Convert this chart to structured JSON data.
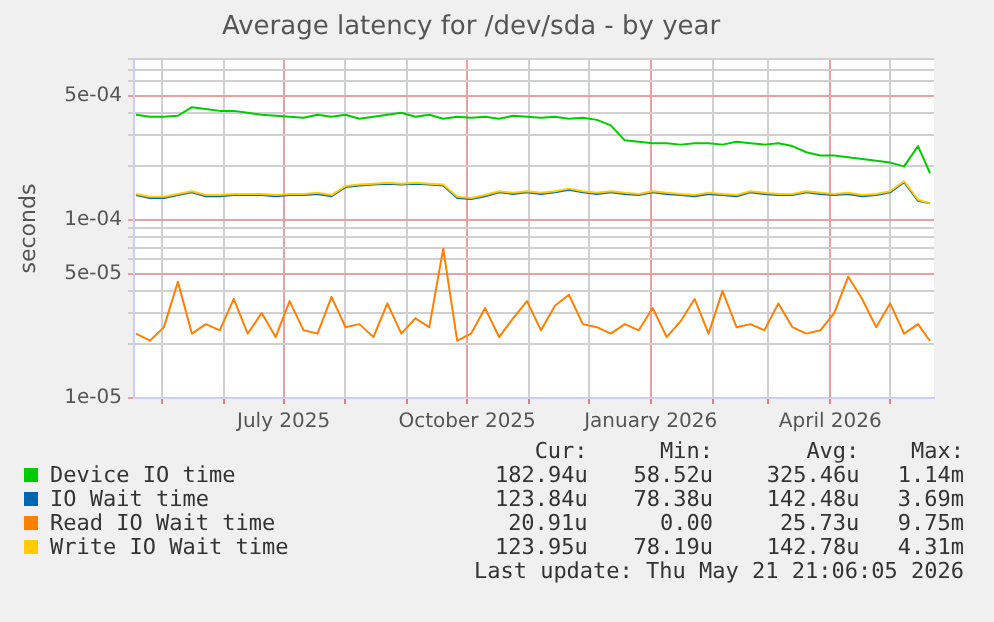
{
  "chart_data": {
    "type": "line",
    "title": "Average latency for /dev/sda - by year",
    "ylabel": "seconds",
    "x": [
      "2025-04-18",
      "2025-04-25",
      "2025-05-02",
      "2025-05-09",
      "2025-05-16",
      "2025-05-23",
      "2025-05-30",
      "2025-06-06",
      "2025-06-13",
      "2025-06-20",
      "2025-06-27",
      "2025-07-04",
      "2025-07-11",
      "2025-07-18",
      "2025-07-25",
      "2025-08-01",
      "2025-08-08",
      "2025-08-15",
      "2025-08-22",
      "2025-08-29",
      "2025-09-05",
      "2025-09-12",
      "2025-09-19",
      "2025-09-26",
      "2025-10-03",
      "2025-10-10",
      "2025-10-17",
      "2025-10-24",
      "2025-10-31",
      "2025-11-07",
      "2025-11-14",
      "2025-11-21",
      "2025-11-28",
      "2025-12-05",
      "2025-12-12",
      "2025-12-19",
      "2025-12-26",
      "2026-01-02",
      "2026-01-09",
      "2026-01-16",
      "2026-01-23",
      "2026-01-30",
      "2026-02-06",
      "2026-02-13",
      "2026-02-20",
      "2026-02-27",
      "2026-03-06",
      "2026-03-13",
      "2026-03-20",
      "2026-03-27",
      "2026-04-03",
      "2026-04-10",
      "2026-04-17",
      "2026-04-24",
      "2026-05-01",
      "2026-05-08",
      "2026-05-15",
      "2026-05-21"
    ],
    "series": [
      {
        "name": "Device IO time",
        "color": "#00cc00",
        "values": [
          0.00039,
          0.00038,
          0.00038,
          0.000385,
          0.00043,
          0.00042,
          0.00041,
          0.00041,
          0.0004,
          0.00039,
          0.000385,
          0.00038,
          0.000375,
          0.00039,
          0.00038,
          0.00039,
          0.00037,
          0.00038,
          0.00039,
          0.0004,
          0.00038,
          0.00039,
          0.00037,
          0.00038,
          0.000375,
          0.00038,
          0.00037,
          0.000385,
          0.00038,
          0.000375,
          0.00038,
          0.00037,
          0.000375,
          0.000365,
          0.00034,
          0.00028,
          0.000275,
          0.00027,
          0.00027,
          0.000265,
          0.00027,
          0.00027,
          0.000265,
          0.000275,
          0.00027,
          0.000265,
          0.00027,
          0.00026,
          0.00024,
          0.00023,
          0.00023,
          0.000225,
          0.00022,
          0.000215,
          0.00021,
          0.0002,
          0.00026,
          0.000183
        ]
      },
      {
        "name": "IO Wait time",
        "color": "#0066b3",
        "values": [
          0.000138,
          0.000133,
          0.000133,
          0.000138,
          0.000143,
          0.000136,
          0.000136,
          0.000138,
          0.000138,
          0.000138,
          0.000136,
          0.000138,
          0.000138,
          0.00014,
          0.000136,
          0.000153,
          0.000156,
          0.000158,
          0.00016,
          0.000158,
          0.00016,
          0.000158,
          0.000156,
          0.000133,
          0.000131,
          0.000136,
          0.000143,
          0.00014,
          0.000143,
          0.00014,
          0.000143,
          0.000148,
          0.000143,
          0.00014,
          0.000143,
          0.00014,
          0.000138,
          0.000143,
          0.00014,
          0.000138,
          0.000136,
          0.00014,
          0.000138,
          0.000136,
          0.000143,
          0.00014,
          0.000138,
          0.000138,
          0.000143,
          0.00014,
          0.000138,
          0.00014,
          0.000136,
          0.000138,
          0.000143,
          0.000163,
          0.000128,
          0.000124
        ]
      },
      {
        "name": "Read IO Wait time",
        "color": "#ff8000",
        "values": [
          2.3e-05,
          2.1e-05,
          2.5e-05,
          4.5e-05,
          2.3e-05,
          2.6e-05,
          2.4e-05,
          3.6e-05,
          2.3e-05,
          3e-05,
          2.2e-05,
          3.5e-05,
          2.4e-05,
          2.3e-05,
          3.7e-05,
          2.5e-05,
          2.6e-05,
          2.2e-05,
          3.4e-05,
          2.3e-05,
          2.8e-05,
          2.5e-05,
          6.9e-05,
          2.1e-05,
          2.3e-05,
          3.2e-05,
          2.2e-05,
          2.8e-05,
          3.5e-05,
          2.4e-05,
          3.3e-05,
          3.8e-05,
          2.6e-05,
          2.5e-05,
          2.3e-05,
          2.6e-05,
          2.4e-05,
          3.2e-05,
          2.2e-05,
          2.7e-05,
          3.6e-05,
          2.3e-05,
          4e-05,
          2.5e-05,
          2.6e-05,
          2.4e-05,
          3.4e-05,
          2.5e-05,
          2.3e-05,
          2.4e-05,
          3e-05,
          4.8e-05,
          3.6e-05,
          2.5e-05,
          3.4e-05,
          2.3e-05,
          2.6e-05,
          2.09e-05
        ]
      },
      {
        "name": "Write IO Wait time",
        "color": "#ffcc00",
        "values": [
          0.00014,
          0.000135,
          0.000135,
          0.00014,
          0.000145,
          0.000138,
          0.000138,
          0.00014,
          0.00014,
          0.00014,
          0.000138,
          0.00014,
          0.00014,
          0.000142,
          0.000138,
          0.000155,
          0.000158,
          0.00016,
          0.000162,
          0.00016,
          0.000162,
          0.00016,
          0.000158,
          0.000135,
          0.000133,
          0.000138,
          0.000145,
          0.000142,
          0.000145,
          0.000142,
          0.000145,
          0.00015,
          0.000145,
          0.000142,
          0.000145,
          0.000142,
          0.00014,
          0.000145,
          0.000142,
          0.00014,
          0.000138,
          0.000142,
          0.00014,
          0.000138,
          0.000145,
          0.000142,
          0.00014,
          0.00014,
          0.000145,
          0.000142,
          0.00014,
          0.000142,
          0.000138,
          0.00014,
          0.000145,
          0.000165,
          0.00013,
          0.000124
        ]
      }
    ],
    "xlim": [
      "2025-04-17",
      "2026-05-23"
    ],
    "xticks": [
      {
        "value": "2025-05-01",
        "label": null
      },
      {
        "value": "2025-06-01",
        "label": null
      },
      {
        "value": "2025-07-01",
        "label": "July 2025"
      },
      {
        "value": "2025-08-01",
        "label": null
      },
      {
        "value": "2025-09-01",
        "label": null
      },
      {
        "value": "2025-10-01",
        "label": "October 2025"
      },
      {
        "value": "2025-11-01",
        "label": null
      },
      {
        "value": "2025-12-01",
        "label": null
      },
      {
        "value": "2026-01-01",
        "label": "January 2026"
      },
      {
        "value": "2026-02-01",
        "label": null
      },
      {
        "value": "2026-03-01",
        "label": null
      },
      {
        "value": "2026-04-01",
        "label": "April 2026"
      },
      {
        "value": "2026-05-01",
        "label": null
      }
    ],
    "ylim": [
      1e-05,
      0.0008
    ],
    "yticks": [
      {
        "value": 1e-05,
        "label": "1e-05"
      },
      {
        "value": 2e-05,
        "label": null
      },
      {
        "value": 3e-05,
        "label": null
      },
      {
        "value": 4e-05,
        "label": null
      },
      {
        "value": 5e-05,
        "label": "5e-05"
      },
      {
        "value": 6e-05,
        "label": null
      },
      {
        "value": 7e-05,
        "label": null
      },
      {
        "value": 8e-05,
        "label": null
      },
      {
        "value": 9e-05,
        "label": null
      },
      {
        "value": 0.0001,
        "label": "1e-04"
      },
      {
        "value": 0.0002,
        "label": null
      },
      {
        "value": 0.0003,
        "label": null
      },
      {
        "value": 0.0004,
        "label": null
      },
      {
        "value": 0.0005,
        "label": "5e-04"
      },
      {
        "value": 0.0006,
        "label": null
      },
      {
        "value": 0.0007,
        "label": null
      },
      {
        "value": 0.0008,
        "label": null
      }
    ],
    "log": "y",
    "grid": true,
    "legend": "bottom",
    "marker": "none",
    "line_style": "solid",
    "annotations": [
      "Cur:",
      "Min:",
      "Avg:",
      "Max:",
      "182.94u",
      "58.52u",
      "325.46u",
      "1.14m",
      "123.84u",
      "78.38u",
      "142.48u",
      "3.69m",
      "20.91u",
      "0.00",
      "25.73u",
      "9.75m",
      "123.95u",
      "78.19u",
      "142.78u",
      "4.31m",
      "Last update: Thu May 21 21:06:05 2026"
    ]
  }
}
